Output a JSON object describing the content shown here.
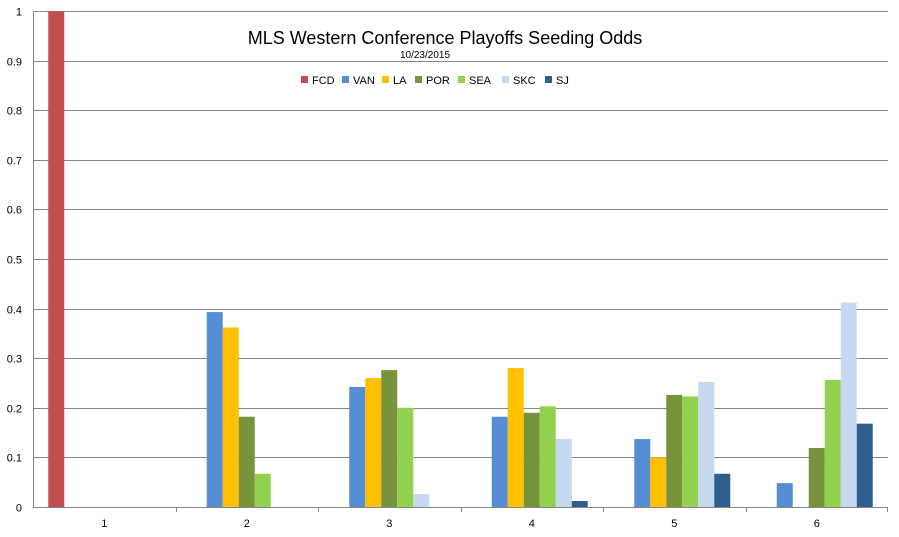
{
  "chart_data": {
    "type": "bar",
    "title": "MLS Western Conference Playoffs Seeding Odds",
    "subtitle": "10/23/2015",
    "xlabel": "",
    "ylabel": "",
    "ylim": [
      0,
      1
    ],
    "yticks": [
      "0",
      "0.1",
      "0.2",
      "0.3",
      "0.4",
      "0.5",
      "0.6",
      "0.7",
      "0.8",
      "0.9",
      "1"
    ],
    "grid": true,
    "legend_position": "top-center",
    "categories": [
      "1",
      "2",
      "3",
      "4",
      "5",
      "6"
    ],
    "series": [
      {
        "name": "FCD",
        "color": "#c0504d",
        "values": [
          1.0,
          0,
          0,
          0,
          0,
          0
        ]
      },
      {
        "name": "VAN",
        "color": "#558ed5",
        "values": [
          0,
          0.393,
          0.242,
          0.182,
          0.137,
          0.048
        ]
      },
      {
        "name": "LA",
        "color": "#ffc000",
        "values": [
          0,
          0.362,
          0.26,
          0.28,
          0.1,
          0
        ]
      },
      {
        "name": "POR",
        "color": "#77933c",
        "values": [
          0,
          0.182,
          0.276,
          0.19,
          0.226,
          0.119
        ]
      },
      {
        "name": "SEA",
        "color": "#92d050",
        "values": [
          0,
          0.067,
          0.2,
          0.203,
          0.223,
          0.256
        ]
      },
      {
        "name": "SKC",
        "color": "#c6d9f1",
        "values": [
          0,
          0,
          0.026,
          0.137,
          0.252,
          0.412
        ]
      },
      {
        "name": "SJ",
        "color": "#2e5e8e",
        "values": [
          0,
          0,
          0,
          0.012,
          0.067,
          0.168
        ]
      }
    ]
  }
}
